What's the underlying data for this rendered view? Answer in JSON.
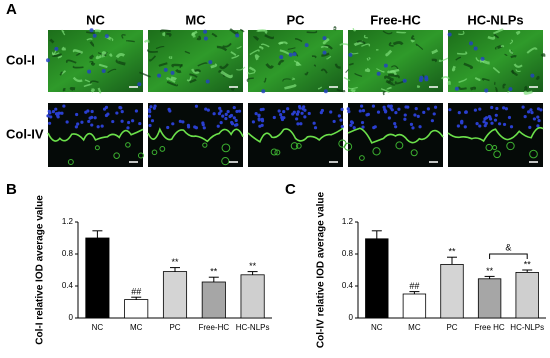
{
  "panel_a": {
    "label": "A",
    "columns": [
      "NC",
      "MC",
      "PC",
      "Free-HC",
      "HC-NLPs"
    ],
    "rows": [
      "Col-I",
      "Col-IV"
    ]
  },
  "chart_data": [
    {
      "type": "bar",
      "panel_label": "B",
      "ylabel": "Col-I relative IOD average value",
      "categories": [
        "NC",
        "MC",
        "PC",
        "Free-HC",
        "HC-NLPs"
      ],
      "values": [
        1.0,
        0.23,
        0.58,
        0.45,
        0.54
      ],
      "errors": [
        0.09,
        0.03,
        0.05,
        0.06,
        0.04
      ],
      "colors": [
        "#000000",
        "#ffffff",
        "#d4d4d4",
        "#a6a6a6",
        "#cfcfcf"
      ],
      "significance": [
        null,
        "##",
        "**",
        "**",
        "**"
      ],
      "ylim": [
        0,
        1.2
      ],
      "yticks": [
        0,
        0.4,
        0.8,
        1.2
      ]
    },
    {
      "type": "bar",
      "panel_label": "C",
      "ylabel": "Col-IV relative IOD average value",
      "categories": [
        "NC",
        "MC",
        "PC",
        "Free HC",
        "HC-NLPs"
      ],
      "values": [
        0.99,
        0.3,
        0.67,
        0.49,
        0.57
      ],
      "errors": [
        0.1,
        0.03,
        0.09,
        0.03,
        0.03
      ],
      "colors": [
        "#000000",
        "#ffffff",
        "#d4d4d4",
        "#a6a6a6",
        "#cfcfcf"
      ],
      "significance": [
        null,
        "##",
        "**",
        "**",
        "**"
      ],
      "bracket": {
        "categories": [
          "Free HC",
          "HC-NLPs"
        ],
        "label": "&"
      },
      "ylim": [
        0,
        1.2
      ],
      "yticks": [
        0,
        0.4,
        0.8,
        1.2
      ]
    }
  ]
}
